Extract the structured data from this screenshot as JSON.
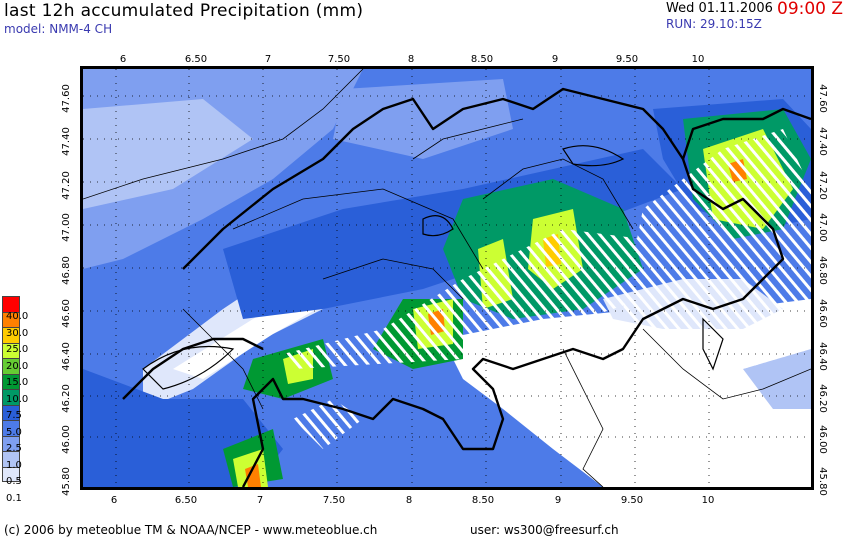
{
  "header": {
    "title": "last 12h accumulated Precipitation (mm)",
    "model": "model: NMM-4 CH",
    "date": "Wed 01.11.2006",
    "time": "09:00 Z",
    "run": "RUN: 29.10:15Z"
  },
  "footer": {
    "copyright": "(c) 2006 by meteoblue TM & NOAA/NCEP - www.meteoblue.ch",
    "user": "user: ws300@freesurf.ch"
  },
  "axes": {
    "lon_ticks": [
      "6",
      "6.50",
      "7",
      "7.50",
      "8",
      "8.50",
      "9",
      "9.50",
      "10"
    ],
    "lat_ticks": [
      "45.80",
      "46.00",
      "46.20",
      "46.40",
      "46.60",
      "46.80",
      "47.00",
      "47.20",
      "47.40",
      "47.60"
    ]
  },
  "legend": {
    "levels": [
      "40.0",
      "30.0",
      "25.0",
      "20.0",
      "15.0",
      "10.0",
      "7.5",
      "5.0",
      "2.5",
      "1.0",
      "0.5",
      "0.1"
    ],
    "colors": [
      "#ff0000",
      "#ff8000",
      "#ffcc00",
      "#ccff33",
      "#66cc33",
      "#009933",
      "#009966",
      "#2a5fd8",
      "#4d7be8",
      "#7f9ff0",
      "#b0c4f5",
      "#dfe7fb"
    ]
  }
}
